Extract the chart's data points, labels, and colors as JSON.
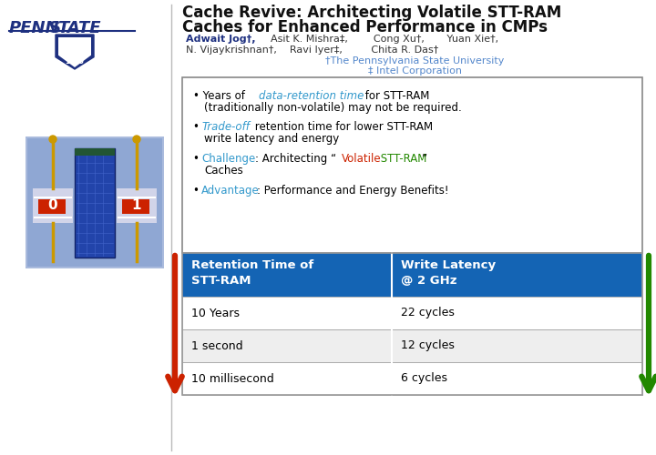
{
  "title_line1": "Cache Revive: Architecting Volatile STT-RAM",
  "title_line2": "Caches for Enhanced Performance in CMPs",
  "authors_line1_bold": "Adwait Jog†,",
  "authors_line1_rest": "  Asit K. Mishra‡,       Cong Xu†,      Yuan Xie†,",
  "authors_line2": "N. Vijaykrishnan†,    Ravi Iyer‡,         Chita R. Das†",
  "affil1": "†The Pennsylvania State University",
  "affil2": "‡ Intel Corporation",
  "table_header1": "Retention Time of\nSTT-RAM",
  "table_header2": "Write Latency\n@ 2 GHz",
  "table_rows": [
    [
      "10 Years",
      "22 cycles"
    ],
    [
      "1 second",
      "12 cycles"
    ],
    [
      "10 millisecond",
      "6 cycles"
    ]
  ],
  "header_bg": "#1464b4",
  "header_fg": "#ffffff",
  "row_bg_alt": "#eeeeee",
  "row_bg": "#ffffff",
  "border_color": "#999999",
  "bullet_box_bg": "#ffffff",
  "bullet_box_border": "#888888",
  "penn_blue": "#1e3080",
  "cyan_color": "#3399cc",
  "red_color": "#cc2200",
  "green_color": "#228800",
  "title_color": "#111111",
  "author_bold_color": "#1e3080",
  "author_color": "#333333",
  "affil_color": "#5588cc",
  "bg_color": "#ffffff",
  "divider_color": "#bbbbbb",
  "chip_bg": "#8899cc",
  "chip_inner": "#334488"
}
